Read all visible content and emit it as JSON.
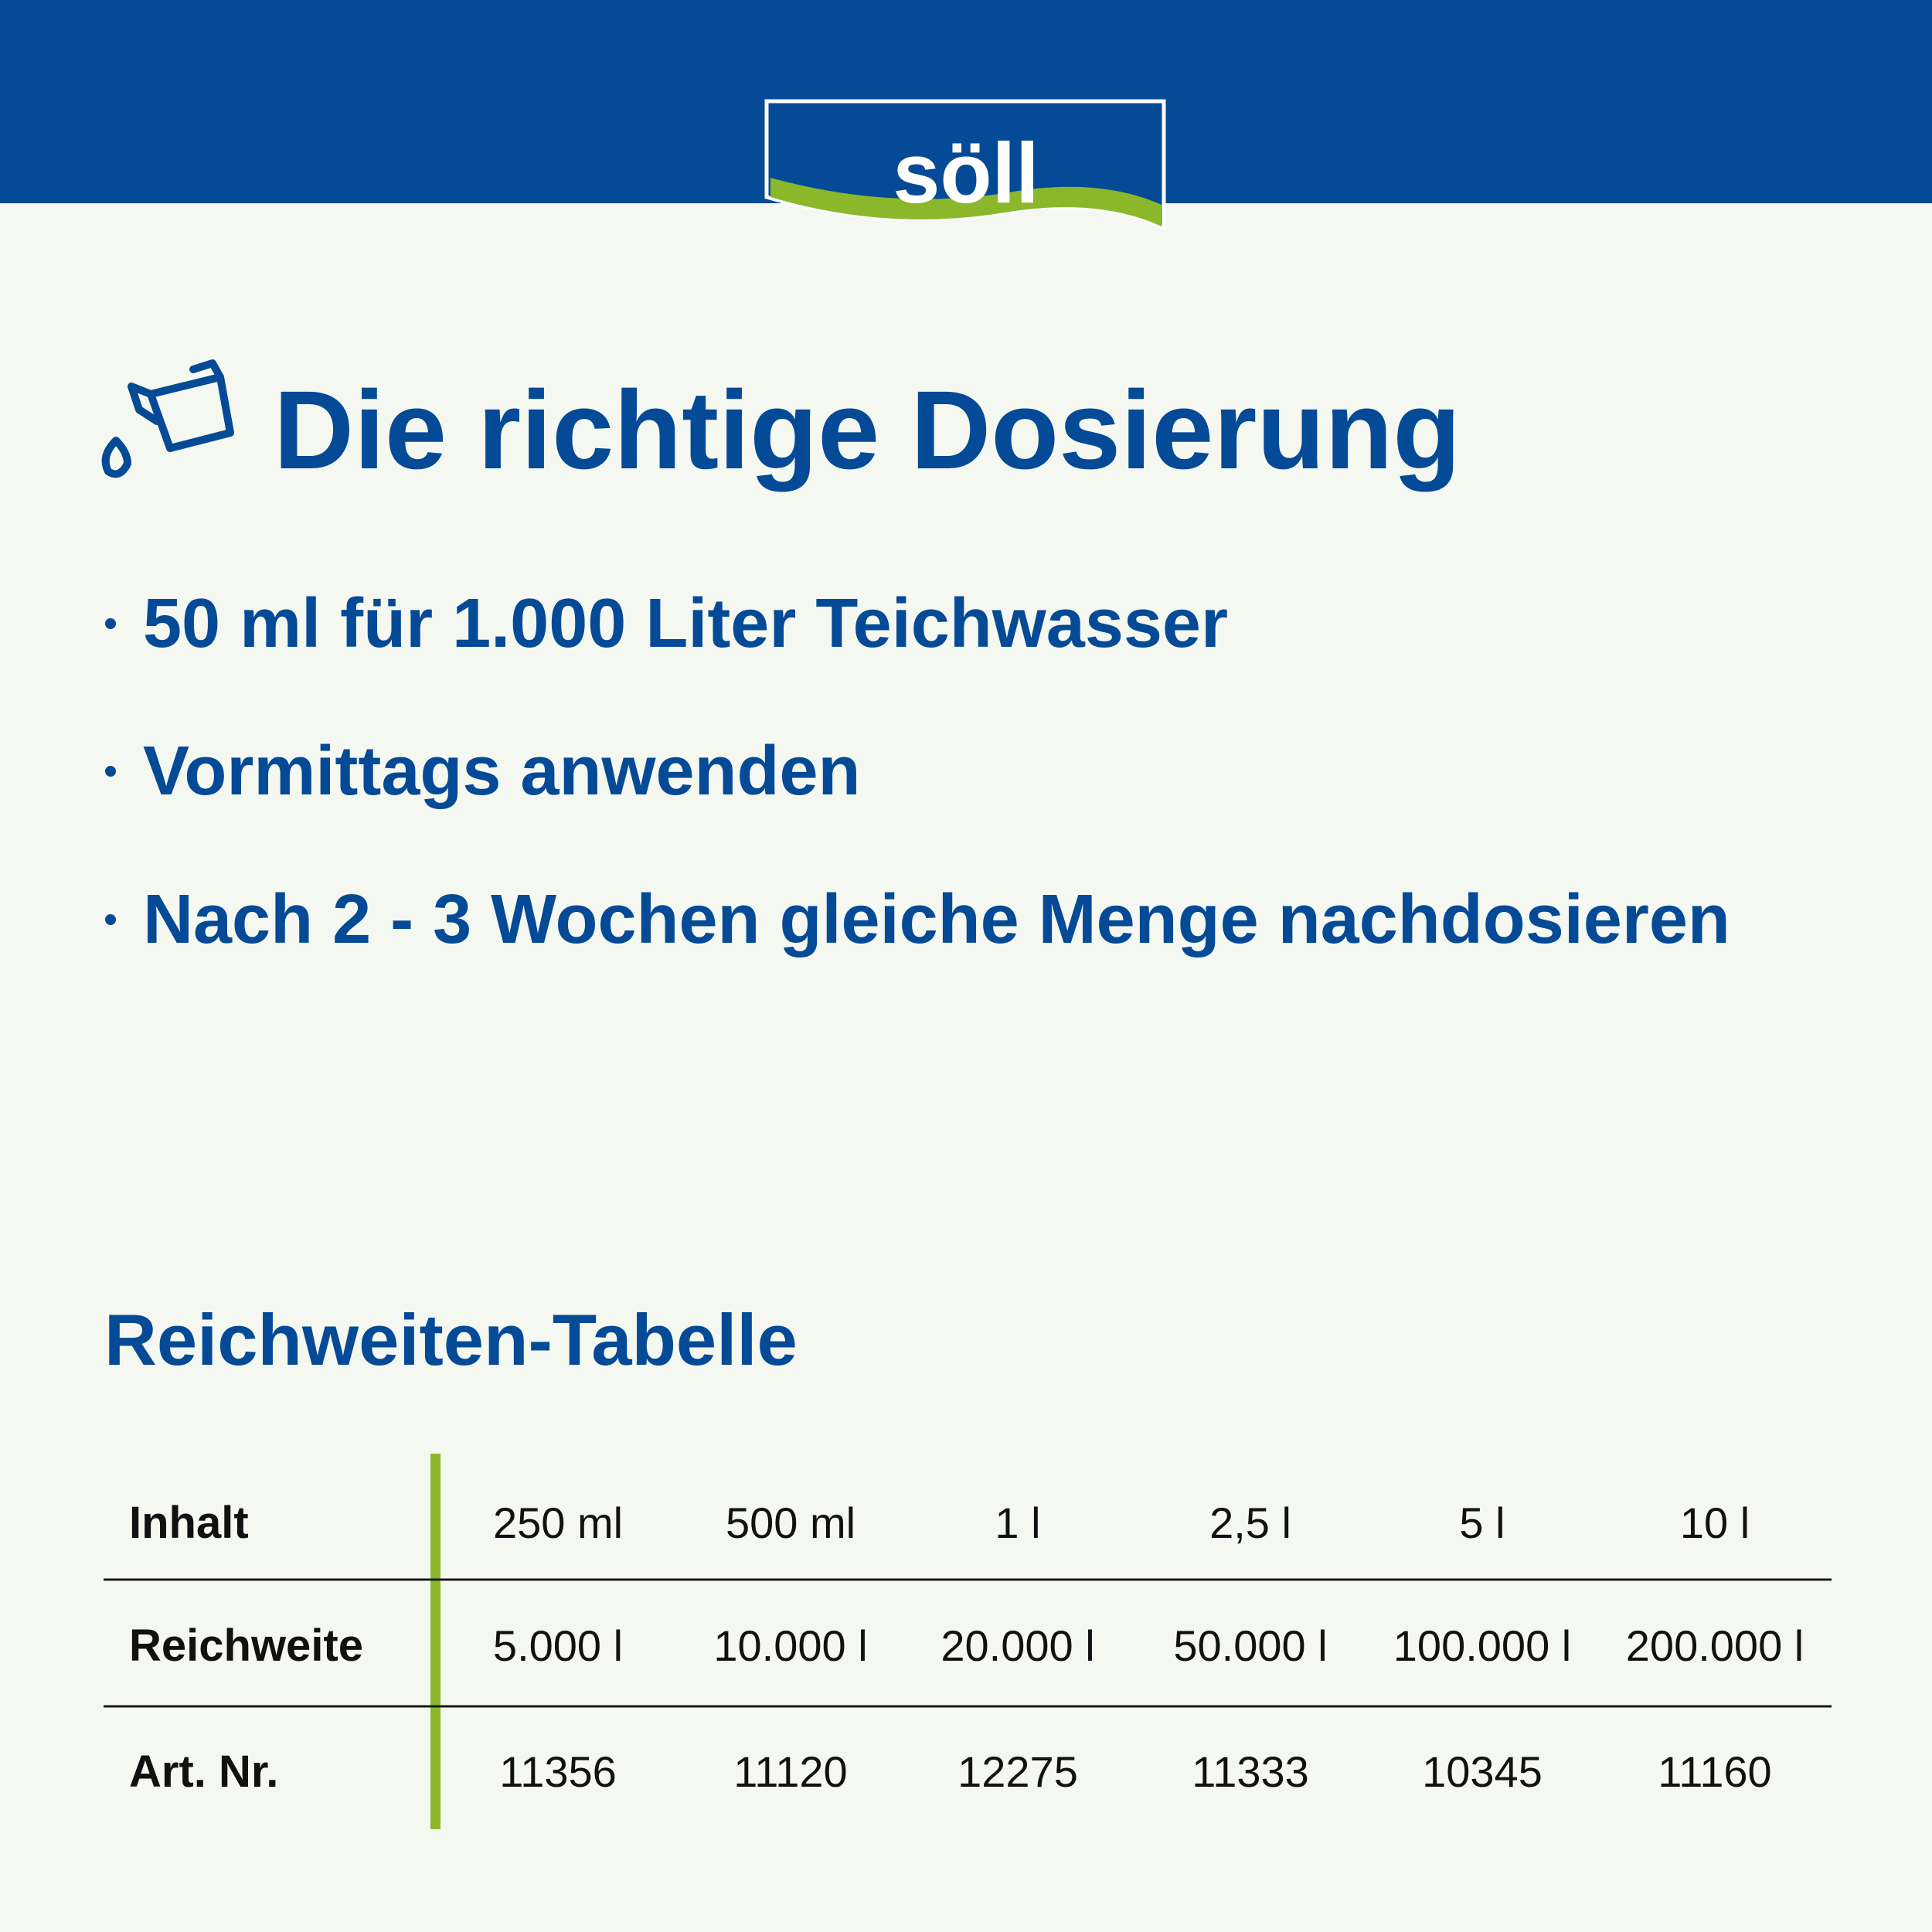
{
  "logo": "söll",
  "title": "Die richtige Dosierung",
  "bullets": [
    "50 ml für 1.000 Liter Teichwasser",
    "Vormittags anwenden",
    "Nach 2 - 3 Wochen gleiche Menge nachdosieren"
  ],
  "table": {
    "title": "Reichweiten-Tabelle",
    "rows": [
      [
        "Inhalt",
        "250 ml",
        "500 ml",
        "1 l",
        "2,5 l",
        "5 l",
        "10 l"
      ],
      [
        "Reichweite",
        "5.000 l",
        "10.000 l",
        "20.000 l",
        "50.000 l",
        "100.000 l",
        "200.000 l"
      ],
      [
        "Art. Nr.",
        "11356",
        "11120",
        "12275",
        "11333",
        "10345",
        "11160"
      ]
    ]
  }
}
